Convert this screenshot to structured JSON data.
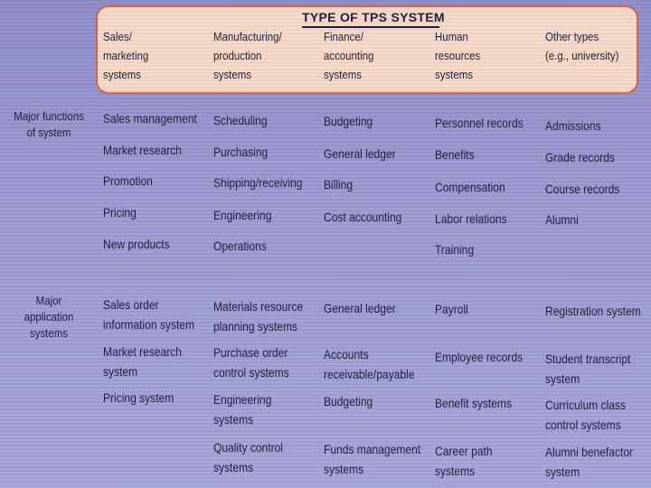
{
  "banner": {
    "title": "TYPE OF TPS SYSTEM",
    "columns": [
      {
        "line1": "Sales/",
        "line2": "marketing",
        "line3": "systems"
      },
      {
        "line1": "Manufacturing/",
        "line2": "production",
        "line3": "systems"
      },
      {
        "line1": "Finance/",
        "line2": "accounting",
        "line3": "systems"
      },
      {
        "line1": "Human",
        "line2": "resources",
        "line3": "systems"
      },
      {
        "line1": "Other types",
        "line2": "(e.g., university)",
        "line3": ""
      }
    ]
  },
  "rows": [
    {
      "label_line1": "Major functions",
      "label_line2": "of system",
      "label_line3": "",
      "cells": [
        [
          "Sales management",
          "Market research",
          "Promotion",
          "Pricing",
          "New products"
        ],
        [
          "Scheduling",
          "Purchasing",
          "Shipping/receiving",
          "Engineering",
          "Operations"
        ],
        [
          "Budgeting",
          "General ledger",
          "Billing",
          "Cost accounting"
        ],
        [
          "Personnel records",
          "Benefits",
          "Compensation",
          "Labor relations",
          "Training"
        ],
        [
          "Admissions",
          "Grade records",
          "Course records",
          "Alumni"
        ]
      ]
    },
    {
      "label_line1": "Major",
      "label_line2": "application",
      "label_line3": "systems",
      "cells": [
        [
          "Sales order",
          "information system",
          "Market research",
          "system",
          "Pricing system"
        ],
        [
          "Materials resource",
          "planning systems",
          "Purchase order",
          "control systems",
          "Engineering",
          "systems",
          "Quality control",
          "systems"
        ],
        [
          "General ledger",
          "Accounts",
          "receivable/payable",
          "Budgeting",
          "Funds management",
          "systems"
        ],
        [
          "Payroll",
          "Employee records",
          "Benefit systems",
          "Career path",
          "systems"
        ],
        [
          "Registration system",
          "Student transcript",
          "system",
          "Curriculum class",
          "control systems",
          "Alumni benefactor",
          "system"
        ]
      ]
    }
  ]
}
